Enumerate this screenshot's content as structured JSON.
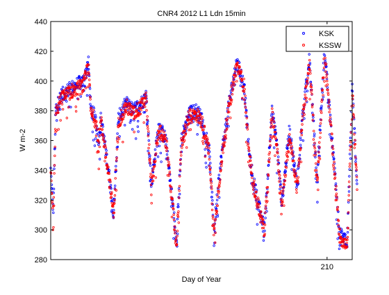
{
  "chart_data": {
    "type": "scatter",
    "title": "CNR4 2012 L1 Ldn 15min",
    "xlabel": "Day of Year",
    "ylabel": "W m-2",
    "xlim": [
      199,
      211
    ],
    "ylim": [
      280,
      440
    ],
    "xticks": [
      {
        "value": 210,
        "label": "210"
      }
    ],
    "yticks": [
      280,
      300,
      320,
      340,
      360,
      380,
      400,
      420,
      440
    ],
    "grid": false,
    "legend_position": "top-right",
    "series": [
      {
        "name": "KSK",
        "color": "#0000ff",
        "marker": "dot",
        "key_points": [
          [
            199.0,
            340
          ],
          [
            199.1,
            312
          ],
          [
            199.2,
            380
          ],
          [
            199.4,
            390
          ],
          [
            199.8,
            395
          ],
          [
            200.3,
            400
          ],
          [
            200.5,
            412
          ],
          [
            200.6,
            380
          ],
          [
            200.8,
            375
          ],
          [
            200.9,
            360
          ],
          [
            201.0,
            375
          ],
          [
            201.3,
            340
          ],
          [
            201.5,
            312
          ],
          [
            201.7,
            375
          ],
          [
            202.0,
            385
          ],
          [
            202.3,
            380
          ],
          [
            202.6,
            385
          ],
          [
            202.8,
            390
          ],
          [
            203.0,
            330
          ],
          [
            203.3,
            370
          ],
          [
            203.6,
            360
          ],
          [
            203.9,
            310
          ],
          [
            204.0,
            290
          ],
          [
            204.2,
            360
          ],
          [
            204.5,
            378
          ],
          [
            204.8,
            380
          ],
          [
            205.0,
            375
          ],
          [
            205.3,
            355
          ],
          [
            205.5,
            300
          ],
          [
            205.8,
            350
          ],
          [
            206.1,
            385
          ],
          [
            206.4,
            413
          ],
          [
            206.7,
            398
          ],
          [
            206.9,
            350
          ],
          [
            207.1,
            330
          ],
          [
            207.5,
            300
          ],
          [
            207.8,
            380
          ],
          [
            208.0,
            358
          ],
          [
            208.2,
            318
          ],
          [
            208.5,
            367
          ],
          [
            208.8,
            330
          ],
          [
            209.0,
            373
          ],
          [
            209.3,
            415
          ],
          [
            209.6,
            332
          ],
          [
            209.9,
            422
          ],
          [
            210.2,
            360
          ],
          [
            210.5,
            298
          ],
          [
            210.8,
            290
          ],
          [
            211.0,
            395
          ],
          [
            211.2,
            330
          ]
        ]
      },
      {
        "name": "KSSW",
        "color": "#ff0000",
        "marker": "dot",
        "key_points": [
          [
            199.0,
            338
          ],
          [
            199.1,
            310
          ],
          [
            199.2,
            378
          ],
          [
            199.4,
            388
          ],
          [
            199.8,
            393
          ],
          [
            200.3,
            397
          ],
          [
            200.5,
            410
          ],
          [
            200.6,
            378
          ],
          [
            200.8,
            373
          ],
          [
            200.9,
            358
          ],
          [
            201.0,
            373
          ],
          [
            201.3,
            338
          ],
          [
            201.5,
            310
          ],
          [
            201.7,
            373
          ],
          [
            202.0,
            383
          ],
          [
            202.3,
            378
          ],
          [
            202.6,
            383
          ],
          [
            202.8,
            388
          ],
          [
            203.0,
            328
          ],
          [
            203.3,
            368
          ],
          [
            203.6,
            358
          ],
          [
            203.9,
            308
          ],
          [
            204.0,
            288
          ],
          [
            204.2,
            358
          ],
          [
            204.5,
            376
          ],
          [
            204.8,
            378
          ],
          [
            205.0,
            373
          ],
          [
            205.3,
            353
          ],
          [
            205.5,
            298
          ],
          [
            205.8,
            348
          ],
          [
            206.1,
            383
          ],
          [
            206.4,
            411
          ],
          [
            206.7,
            396
          ],
          [
            206.9,
            348
          ],
          [
            207.1,
            328
          ],
          [
            207.5,
            298
          ],
          [
            207.8,
            378
          ],
          [
            208.0,
            356
          ],
          [
            208.2,
            316
          ],
          [
            208.5,
            365
          ],
          [
            208.8,
            328
          ],
          [
            209.0,
            371
          ],
          [
            209.3,
            413
          ],
          [
            209.6,
            330
          ],
          [
            209.9,
            420
          ],
          [
            210.2,
            358
          ],
          [
            210.5,
            296
          ],
          [
            210.8,
            288
          ],
          [
            211.0,
            393
          ],
          [
            211.2,
            328
          ]
        ]
      }
    ]
  }
}
